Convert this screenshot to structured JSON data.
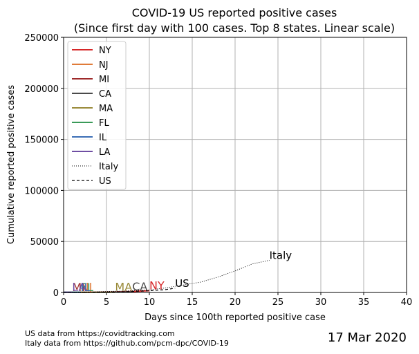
{
  "chart_data": {
    "type": "line",
    "title": "COVID-19 US reported positive cases",
    "subtitle": "(Since first day with 100 cases. Top 8 states. Linear scale)",
    "xlabel": "Days since 100th reported positive case",
    "ylabel": "Cumulative reported positive cases",
    "xlim": [
      0,
      40
    ],
    "ylim": [
      0,
      250000
    ],
    "x_ticks": [
      0,
      5,
      10,
      15,
      20,
      25,
      30,
      35,
      40
    ],
    "y_ticks": [
      0,
      50000,
      100000,
      150000,
      200000,
      250000
    ],
    "grid": true,
    "legend_position": "top-left",
    "series": [
      {
        "name": "NY",
        "color": "#d62728",
        "style": "solid",
        "x": [
          0,
          1,
          2,
          3,
          4,
          5,
          6,
          7,
          8,
          9,
          10
        ],
        "y": [
          105,
          142,
          173,
          220,
          328,
          421,
          525,
          732,
          967,
          1374,
          1706
        ],
        "end_label": "NY"
      },
      {
        "name": "NJ",
        "color": "#e07b39",
        "style": "solid",
        "x": [
          0,
          1,
          2
        ],
        "y": [
          100,
          160,
          267
        ],
        "end_label": "NJ"
      },
      {
        "name": "MI",
        "color": "#9e2a2b",
        "style": "solid",
        "x": [
          0,
          1
        ],
        "y": [
          100,
          120
        ],
        "end_label": "MI"
      },
      {
        "name": "CA",
        "color": "#4a4a4a",
        "style": "solid",
        "x": [
          0,
          1,
          2,
          3,
          4,
          5,
          6,
          7,
          8
        ],
        "y": [
          114,
          133,
          157,
          177,
          221,
          282,
          340,
          426,
          557
        ],
        "end_label": "CA"
      },
      {
        "name": "MA",
        "color": "#9a8b3a",
        "style": "solid",
        "x": [
          0,
          1,
          2,
          3,
          4,
          5,
          6
        ],
        "y": [
          108,
          123,
          138,
          164,
          197,
          218,
          218
        ],
        "end_label": "MA"
      },
      {
        "name": "FL",
        "color": "#3a9a58",
        "style": "solid",
        "x": [
          0,
          1,
          2
        ],
        "y": [
          100,
          141,
          160
        ],
        "end_label": "FL"
      },
      {
        "name": "IL",
        "color": "#3a6db5",
        "style": "solid",
        "x": [
          0,
          1,
          2
        ],
        "y": [
          105,
          150,
          160
        ],
        "end_label": "IL"
      },
      {
        "name": "LA",
        "color": "#6f4ea3",
        "style": "solid",
        "x": [
          0,
          1
        ],
        "y": [
          136,
          196
        ],
        "end_label": "LA"
      },
      {
        "name": "Italy",
        "color": "#000000",
        "style": "dotted",
        "x": [
          0,
          2,
          4,
          6,
          8,
          10,
          12,
          14,
          16,
          18,
          20,
          22,
          24
        ],
        "y": [
          150,
          322,
          650,
          1128,
          1694,
          2502,
          4636,
          7375,
          10149,
          15113,
          21157,
          27980,
          31506
        ],
        "end_label": "Italy"
      },
      {
        "name": "US",
        "color": "#000000",
        "style": "dashed",
        "x": [
          0,
          1,
          2,
          3,
          4,
          5,
          6,
          7,
          8,
          9,
          10,
          11,
          12,
          13
        ],
        "y": [
          100,
          124,
          158,
          221,
          319,
          435,
          541,
          704,
          994,
          1301,
          1697,
          2247,
          2943,
          4226
        ],
        "end_label": "US"
      }
    ],
    "footnotes": [
      "US data from https://covidtracking.com",
      "Italy data from https://github.com/pcm-dpc/COVID-19"
    ],
    "date": "17 Mar 2020"
  }
}
